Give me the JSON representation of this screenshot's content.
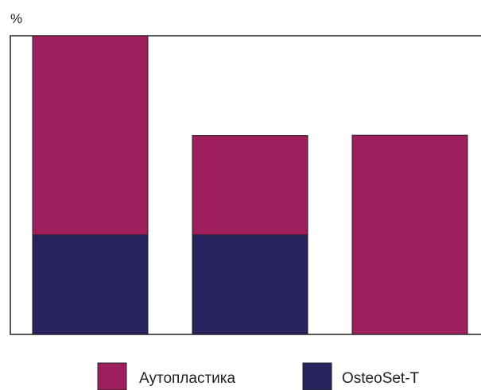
{
  "chart_data": {
    "type": "bar",
    "stacked": true,
    "ylabel": "%",
    "xlabel": "",
    "title": "",
    "categories": [
      "",
      "",
      ""
    ],
    "ylim": [
      0,
      100
    ],
    "grid": false,
    "legend_position": "bottom",
    "series": [
      {
        "name": "OsteoSet-T",
        "color": "#27235e",
        "values": [
          33.3,
          33.3,
          0
        ]
      },
      {
        "name": "Аутопластика",
        "color": "#9f1f5e",
        "values": [
          66.7,
          33.3,
          66.7
        ]
      }
    ],
    "legend": [
      {
        "name": "Аутопластика",
        "color": "#9f1f5e"
      },
      {
        "name": "OsteoSet-T",
        "color": "#27235e"
      }
    ]
  }
}
